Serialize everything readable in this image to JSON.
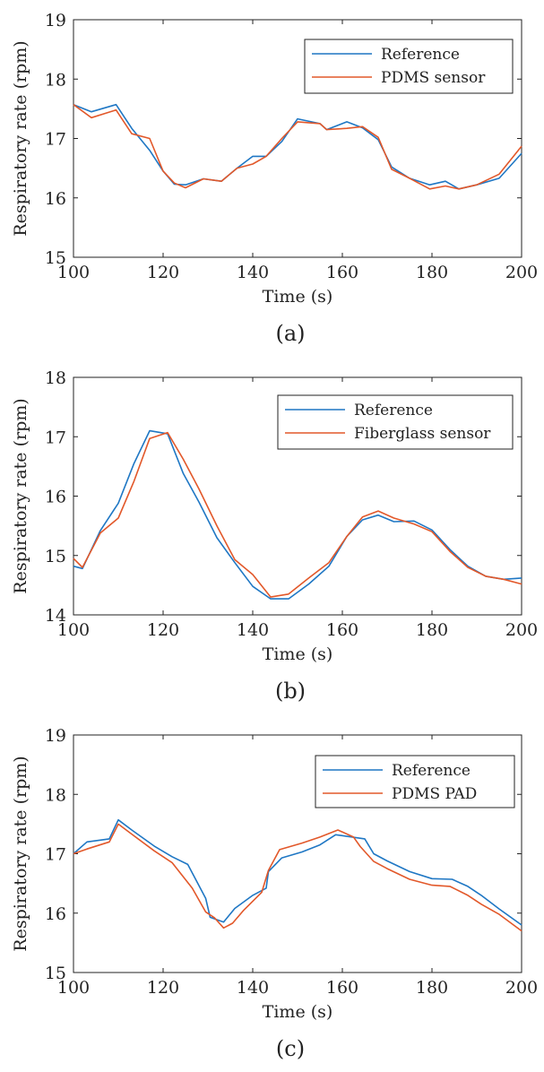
{
  "colors": {
    "reference": "#1f77c4",
    "sensor": "#e2582a",
    "axes": "#222222"
  },
  "chart_data": [
    {
      "type": "line",
      "caption": "(a)",
      "xlabel": "Time (s)",
      "ylabel": "Respiratory rate (rpm)",
      "xlim": [
        100,
        200
      ],
      "ylim": [
        15,
        19
      ],
      "xticks": [
        "100",
        "120",
        "140",
        "160",
        "180",
        "200"
      ],
      "yticks": [
        "15",
        "16",
        "17",
        "18",
        "19"
      ],
      "legend_position": "top-right",
      "series": [
        {
          "name": "Reference",
          "color": "#1f77c4",
          "x": [
            100,
            104,
            109.5,
            113,
            117,
            120,
            122.5,
            125,
            129,
            133,
            136.5,
            140,
            143,
            146.5,
            150,
            155,
            156.5,
            161,
            164.5,
            168,
            171,
            175,
            179.5,
            183,
            186,
            190,
            195,
            200
          ],
          "y": [
            17.57,
            17.45,
            17.57,
            17.17,
            16.8,
            16.45,
            16.23,
            16.22,
            16.32,
            16.28,
            16.5,
            16.7,
            16.7,
            16.95,
            17.33,
            17.25,
            17.15,
            17.28,
            17.18,
            16.98,
            16.52,
            16.33,
            16.22,
            16.28,
            16.15,
            16.22,
            16.33,
            16.75
          ]
        },
        {
          "name": "PDMS sensor",
          "color": "#e2582a",
          "x": [
            100,
            104,
            109.5,
            113,
            117,
            120,
            122.5,
            125,
            129,
            133,
            136.5,
            140,
            143,
            146.5,
            150,
            155,
            156.5,
            161,
            164.5,
            168,
            171,
            175,
            179.5,
            183,
            186,
            190,
            195,
            200
          ],
          "y": [
            17.57,
            17.35,
            17.48,
            17.08,
            17.0,
            16.45,
            16.25,
            16.17,
            16.32,
            16.28,
            16.5,
            16.57,
            16.7,
            17.0,
            17.28,
            17.25,
            17.15,
            17.17,
            17.2,
            17.02,
            16.48,
            16.33,
            16.15,
            16.2,
            16.15,
            16.22,
            16.4,
            16.87
          ]
        }
      ]
    },
    {
      "type": "line",
      "caption": "(b)",
      "xlabel": "Time (s)",
      "ylabel": "Respiratory rate (rpm)",
      "xlim": [
        100,
        200
      ],
      "ylim": [
        14,
        18
      ],
      "xticks": [
        "100",
        "120",
        "140",
        "160",
        "180",
        "200"
      ],
      "yticks": [
        "14",
        "15",
        "16",
        "17",
        "18"
      ],
      "legend_position": "top-right",
      "series": [
        {
          "name": "Reference",
          "color": "#1f77c4",
          "x": [
            100,
            102,
            106,
            110,
            113.5,
            117,
            121,
            124.5,
            128,
            132,
            136,
            140,
            144,
            148,
            152.5,
            157,
            161,
            164.5,
            168,
            171.5,
            176,
            180,
            184,
            188,
            192,
            196,
            200
          ],
          "y": [
            14.82,
            14.78,
            15.42,
            15.88,
            16.55,
            17.1,
            17.05,
            16.38,
            15.9,
            15.3,
            14.88,
            14.48,
            14.27,
            14.27,
            14.52,
            14.82,
            15.32,
            15.6,
            15.68,
            15.57,
            15.58,
            15.43,
            15.1,
            14.82,
            14.65,
            14.6,
            14.62
          ]
        },
        {
          "name": "Fiberglass sensor",
          "color": "#e2582a",
          "x": [
            100,
            102,
            106,
            110,
            113.5,
            117,
            121,
            124.5,
            128,
            132,
            136,
            140,
            144,
            148,
            152.5,
            157,
            161,
            164.5,
            168,
            171.5,
            176,
            180,
            184,
            188,
            192,
            196,
            200
          ],
          "y": [
            14.95,
            14.8,
            15.38,
            15.63,
            16.25,
            16.97,
            17.07,
            16.62,
            16.12,
            15.5,
            14.93,
            14.68,
            14.3,
            14.35,
            14.62,
            14.88,
            15.32,
            15.65,
            15.75,
            15.63,
            15.53,
            15.4,
            15.07,
            14.8,
            14.65,
            14.6,
            14.52
          ]
        }
      ]
    },
    {
      "type": "line",
      "caption": "(c)",
      "xlabel": "Time (s)",
      "ylabel": "Respiratory rate (rpm)",
      "xlim": [
        100,
        200
      ],
      "ylim": [
        15,
        19
      ],
      "xticks": [
        "100",
        "120",
        "140",
        "160",
        "180",
        "200"
      ],
      "yticks": [
        "15",
        "16",
        "17",
        "18",
        "19"
      ],
      "legend_position": "top-right",
      "series": [
        {
          "name": "Reference",
          "color": "#1f77c4",
          "x": [
            100,
            103,
            108,
            110,
            113,
            118,
            122,
            125.5,
            129.5,
            130.5,
            133.5,
            136,
            140,
            143,
            143.5,
            146.5,
            151,
            155,
            158.5,
            165,
            167,
            170,
            175,
            180,
            184.5,
            188,
            191,
            195,
            200
          ],
          "y": [
            17.0,
            17.2,
            17.25,
            17.57,
            17.4,
            17.13,
            16.95,
            16.82,
            16.25,
            15.93,
            15.85,
            16.08,
            16.3,
            16.42,
            16.7,
            16.93,
            17.03,
            17.15,
            17.32,
            17.25,
            17.0,
            16.88,
            16.7,
            16.58,
            16.57,
            16.45,
            16.3,
            16.07,
            15.8
          ]
        },
        {
          "name": "PDMS PAD",
          "color": "#e2582a",
          "x": [
            100,
            103,
            108,
            110,
            113,
            118,
            122,
            126.5,
            129.5,
            131.5,
            133.5,
            135.5,
            138,
            142,
            143.5,
            146,
            151,
            155,
            159,
            162.5,
            164,
            167,
            170,
            175,
            180,
            184,
            188,
            191,
            195,
            200
          ],
          "y": [
            17.0,
            17.08,
            17.2,
            17.5,
            17.33,
            17.05,
            16.85,
            16.42,
            16.02,
            15.92,
            15.75,
            15.83,
            16.05,
            16.35,
            16.72,
            17.07,
            17.18,
            17.28,
            17.4,
            17.28,
            17.12,
            16.87,
            16.75,
            16.57,
            16.47,
            16.45,
            16.3,
            16.15,
            15.98,
            15.7
          ]
        }
      ]
    }
  ]
}
